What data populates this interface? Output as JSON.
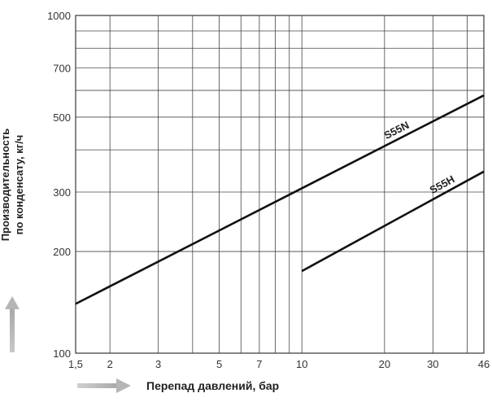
{
  "chart_data": {
    "type": "line",
    "xlabel": "Перепад давлений, бар",
    "ylabel_line1": "Производительность",
    "ylabel_line2": "по конденсату, кг/ч",
    "x_scale": "log",
    "y_scale": "log",
    "xlim": [
      1.5,
      46
    ],
    "ylim": [
      100,
      1000
    ],
    "x_ticks": [
      {
        "value": 1.5,
        "label": "1,5"
      },
      {
        "value": 2,
        "label": "2"
      },
      {
        "value": 3,
        "label": "3"
      },
      {
        "value": 5,
        "label": "5"
      },
      {
        "value": 7,
        "label": "7"
      },
      {
        "value": 10,
        "label": "10"
      },
      {
        "value": 20,
        "label": "20"
      },
      {
        "value": 30,
        "label": "30"
      },
      {
        "value": 46,
        "label": "46"
      }
    ],
    "x_grid": [
      1.5,
      2,
      3,
      4,
      5,
      6,
      7,
      8,
      9,
      10,
      20,
      30,
      40,
      46
    ],
    "y_ticks": [
      {
        "value": 100,
        "label": "100"
      },
      {
        "value": 200,
        "label": "200"
      },
      {
        "value": 300,
        "label": "300"
      },
      {
        "value": 500,
        "label": "500"
      },
      {
        "value": 700,
        "label": "700"
      },
      {
        "value": 1000,
        "label": "1000"
      }
    ],
    "y_grid": [
      100,
      200,
      300,
      400,
      500,
      600,
      700,
      800,
      900,
      1000
    ],
    "grid": true,
    "series": [
      {
        "name": "S55N",
        "points": [
          [
            1.5,
            140
          ],
          [
            46,
            580
          ]
        ]
      },
      {
        "name": "S55H",
        "points": [
          [
            10,
            175
          ],
          [
            46,
            345
          ]
        ]
      }
    ]
  }
}
